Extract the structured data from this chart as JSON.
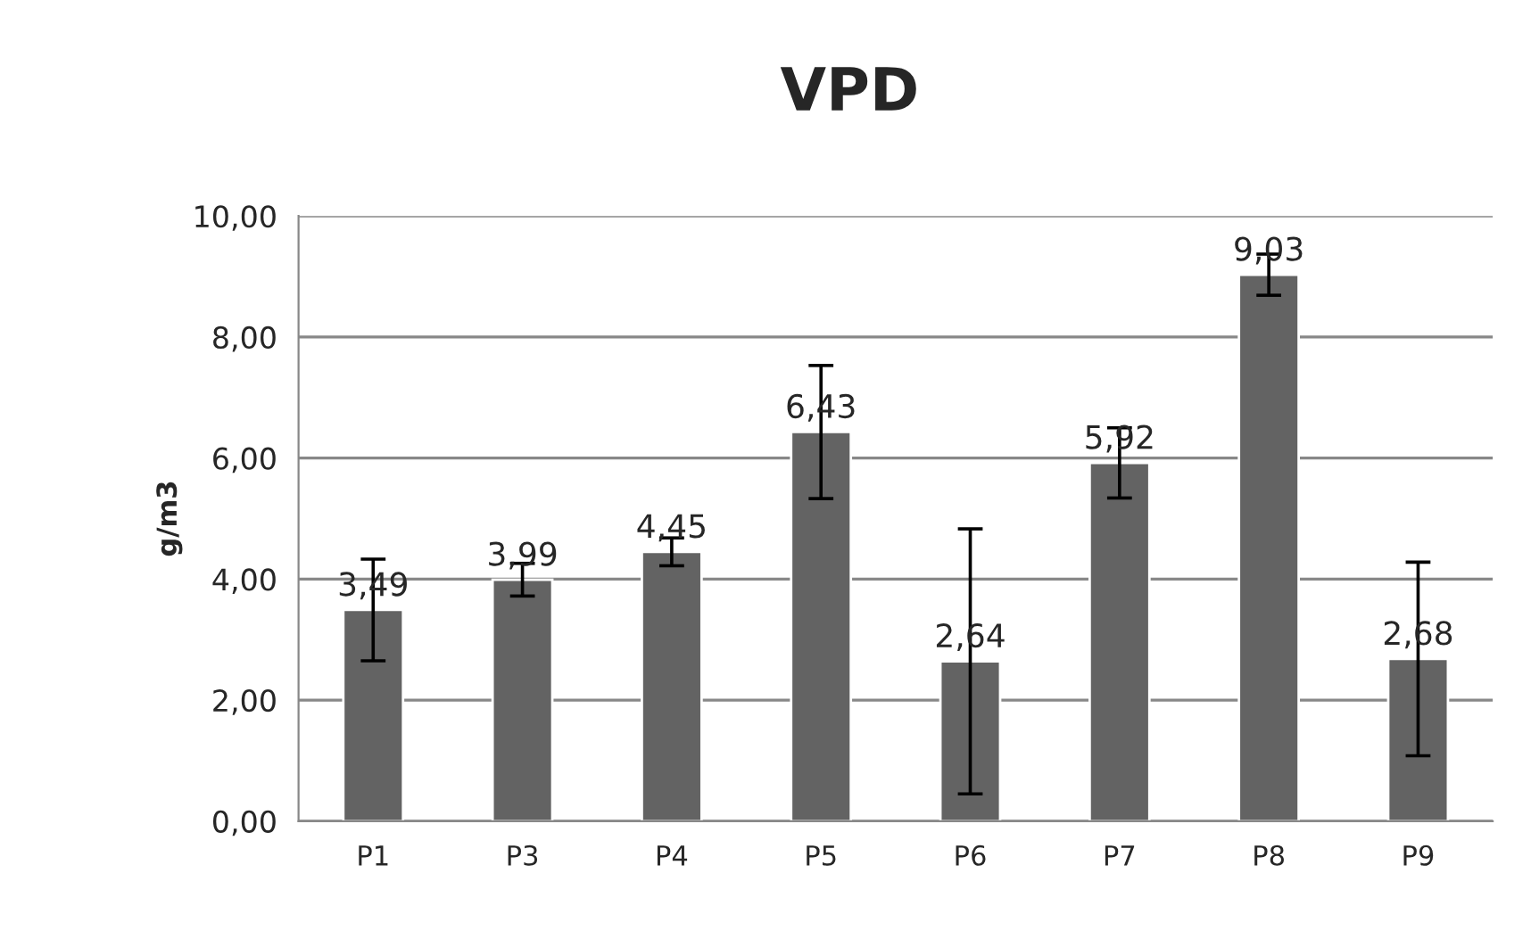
{
  "chart_data": {
    "type": "bar",
    "title": "VPD",
    "ylabel": "g/m3",
    "categories": [
      "P1",
      "P3",
      "P4",
      "P5",
      "P6",
      "P7",
      "P8",
      "P9"
    ],
    "values": [
      3.49,
      3.99,
      4.45,
      6.43,
      2.64,
      5.92,
      9.03,
      2.68
    ],
    "errors": [
      0.84,
      0.27,
      0.23,
      1.1,
      2.19,
      0.58,
      0.34,
      1.6
    ],
    "color": "#636363",
    "data_labels": true,
    "value_labels": [
      "3,49",
      "3,99",
      "4,45",
      "6,43",
      "2,64",
      "5,92",
      "9,03",
      "2,68"
    ],
    "ylim": [
      0,
      10
    ],
    "yticks": [
      {
        "value": 0,
        "label": "0,00"
      },
      {
        "value": 2,
        "label": "2,00"
      },
      {
        "value": 4,
        "label": "4,00"
      },
      {
        "value": 6,
        "label": "6,00"
      },
      {
        "value": 8,
        "label": "8,00"
      },
      {
        "value": 10,
        "label": "10,00"
      }
    ],
    "grid": "y",
    "legend": false
  }
}
